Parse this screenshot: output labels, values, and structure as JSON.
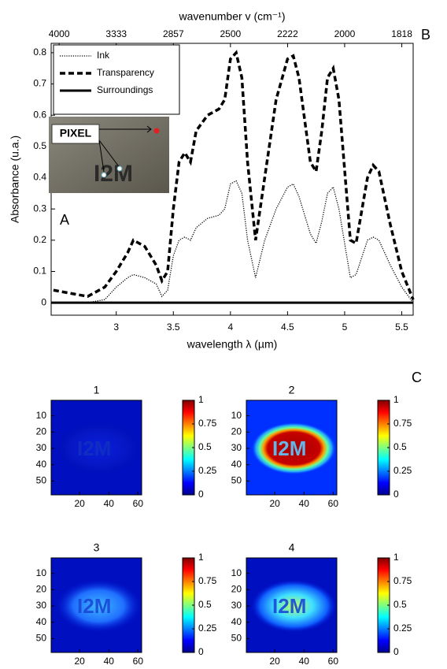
{
  "chart_data": [
    {
      "type": "line",
      "xlabel": "wavelength λ (µm)",
      "ylabel": "Absorbance (u.a.)",
      "x2label": "wavenumber v (cm⁻¹)",
      "xlim": [
        2.43,
        5.6
      ],
      "ylim": [
        -0.04,
        0.83
      ],
      "xticks": [
        3,
        3.5,
        4,
        4.5,
        5,
        5.5
      ],
      "yticks": [
        0,
        0.1,
        0.2,
        0.3,
        0.4,
        0.5,
        0.6,
        0.7,
        0.8
      ],
      "x2ticks": [
        4000,
        3333,
        2857,
        2500,
        2222,
        2000,
        1818
      ],
      "legend": "upper left",
      "annotations": [
        "A",
        "B"
      ],
      "inset": {
        "label": "PIXEL",
        "text": "I2M"
      },
      "series": [
        {
          "name": "Ink",
          "color": "#000000",
          "style": "dotted",
          "x": [
            2.45,
            2.6,
            2.75,
            2.9,
            3.0,
            3.1,
            3.15,
            3.25,
            3.35,
            3.4,
            3.45,
            3.5,
            3.55,
            3.6,
            3.65,
            3.7,
            3.8,
            3.9,
            3.95,
            4.0,
            4.05,
            4.1,
            4.15,
            4.22,
            4.3,
            4.4,
            4.5,
            4.55,
            4.6,
            4.7,
            4.75,
            4.8,
            4.85,
            4.9,
            4.95,
            5.05,
            5.1,
            5.2,
            5.25,
            5.3,
            5.4,
            5.5,
            5.6
          ],
          "values": [
            0,
            0,
            0,
            0.01,
            0.05,
            0.08,
            0.09,
            0.08,
            0.06,
            0.02,
            0.04,
            0.15,
            0.2,
            0.21,
            0.2,
            0.24,
            0.27,
            0.28,
            0.3,
            0.38,
            0.39,
            0.35,
            0.2,
            0.08,
            0.2,
            0.3,
            0.37,
            0.38,
            0.34,
            0.22,
            0.19,
            0.26,
            0.35,
            0.37,
            0.3,
            0.08,
            0.09,
            0.2,
            0.21,
            0.2,
            0.12,
            0.05,
            0
          ]
        },
        {
          "name": "Transparency",
          "color": "#000000",
          "style": "dashed",
          "x": [
            2.45,
            2.6,
            2.75,
            2.9,
            3.0,
            3.1,
            3.15,
            3.25,
            3.35,
            3.4,
            3.45,
            3.5,
            3.55,
            3.6,
            3.65,
            3.7,
            3.8,
            3.9,
            3.95,
            4.0,
            4.05,
            4.1,
            4.15,
            4.22,
            4.3,
            4.4,
            4.5,
            4.55,
            4.6,
            4.7,
            4.75,
            4.8,
            4.85,
            4.9,
            4.95,
            5.05,
            5.1,
            5.2,
            5.25,
            5.3,
            5.4,
            5.5,
            5.6
          ],
          "values": [
            0.04,
            0.03,
            0.02,
            0.05,
            0.1,
            0.16,
            0.2,
            0.18,
            0.12,
            0.07,
            0.1,
            0.3,
            0.45,
            0.48,
            0.45,
            0.55,
            0.6,
            0.62,
            0.65,
            0.78,
            0.8,
            0.72,
            0.45,
            0.2,
            0.4,
            0.65,
            0.78,
            0.79,
            0.72,
            0.45,
            0.42,
            0.55,
            0.72,
            0.75,
            0.65,
            0.2,
            0.19,
            0.4,
            0.44,
            0.42,
            0.25,
            0.1,
            0.01
          ]
        },
        {
          "name": "Surroundings",
          "color": "#000000",
          "style": "solid",
          "x": [
            2.43,
            5.6
          ],
          "values": [
            0,
            0
          ]
        }
      ]
    },
    {
      "type": "heatmap",
      "title": "1",
      "xlim": [
        0.5,
        62.5
      ],
      "ylim": [
        0.5,
        58.5
      ],
      "xticks": [
        20,
        40,
        60
      ],
      "yticks": [
        10,
        20,
        30,
        40,
        50
      ],
      "clim": [
        0,
        1
      ],
      "cticks": [
        0,
        0.25,
        0.5,
        0.75,
        1
      ],
      "image_text": "I2M"
    },
    {
      "type": "heatmap",
      "title": "2",
      "xlim": [
        0.5,
        62.5
      ],
      "ylim": [
        0.5,
        58.5
      ],
      "xticks": [
        20,
        40,
        60
      ],
      "yticks": [
        10,
        20,
        30,
        40,
        50
      ],
      "clim": [
        0,
        1
      ],
      "cticks": [
        0,
        0.25,
        0.5,
        0.75,
        1
      ],
      "image_text": "I2M",
      "annotation": "C"
    },
    {
      "type": "heatmap",
      "title": "3",
      "xlim": [
        0.5,
        62.5
      ],
      "ylim": [
        0.5,
        58.5
      ],
      "xticks": [
        20,
        40,
        60
      ],
      "yticks": [
        10,
        20,
        30,
        40,
        50
      ],
      "clim": [
        0,
        1
      ],
      "cticks": [
        0,
        0.25,
        0.5,
        0.75,
        1
      ],
      "image_text": "I2M"
    },
    {
      "type": "heatmap",
      "title": "4",
      "xlim": [
        0.5,
        62.5
      ],
      "ylim": [
        0.5,
        58.5
      ],
      "xticks": [
        20,
        40,
        60
      ],
      "yticks": [
        10,
        20,
        30,
        40,
        50
      ],
      "clim": [
        0,
        1
      ],
      "cticks": [
        0,
        0.25,
        0.5,
        0.75,
        1
      ],
      "image_text": "I2M"
    }
  ]
}
